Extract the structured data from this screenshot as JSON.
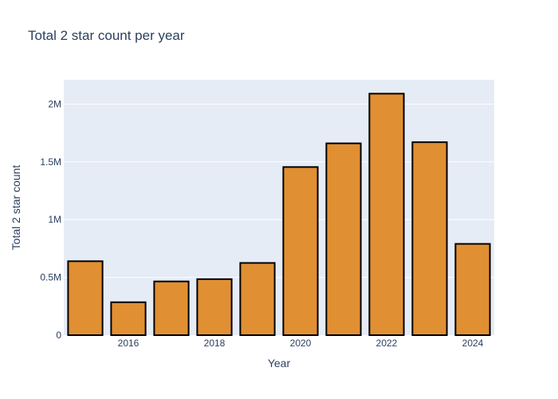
{
  "chart_data": {
    "type": "bar",
    "title": "Total 2 star count per year",
    "xlabel": "Year",
    "ylabel": "Total 2 star count",
    "x": [
      2015,
      2016,
      2017,
      2018,
      2019,
      2020,
      2021,
      2022,
      2023,
      2024
    ],
    "values": [
      640000,
      285000,
      465000,
      485000,
      625000,
      1455000,
      1660000,
      2090000,
      1670000,
      790000
    ],
    "xlim": [
      2014.5,
      2024.5
    ],
    "ylim": [
      0,
      2210000
    ],
    "x_ticks": [
      {
        "value": 2016,
        "label": "2016"
      },
      {
        "value": 2018,
        "label": "2018"
      },
      {
        "value": 2020,
        "label": "2020"
      },
      {
        "value": 2022,
        "label": "2022"
      },
      {
        "value": 2024,
        "label": "2024"
      }
    ],
    "y_ticks": [
      {
        "value": 0,
        "label": "0"
      },
      {
        "value": 500000,
        "label": "0.5M"
      },
      {
        "value": 1000000,
        "label": "1M"
      },
      {
        "value": 1500000,
        "label": "1.5M"
      },
      {
        "value": 2000000,
        "label": "2M"
      }
    ],
    "grid": true,
    "colors": {
      "bar_fill": "#e18f33",
      "bar_outline": "#000000",
      "plot_background": "#e5ecf6",
      "grid": "#ffffff",
      "text": "#2a3f5f"
    }
  }
}
